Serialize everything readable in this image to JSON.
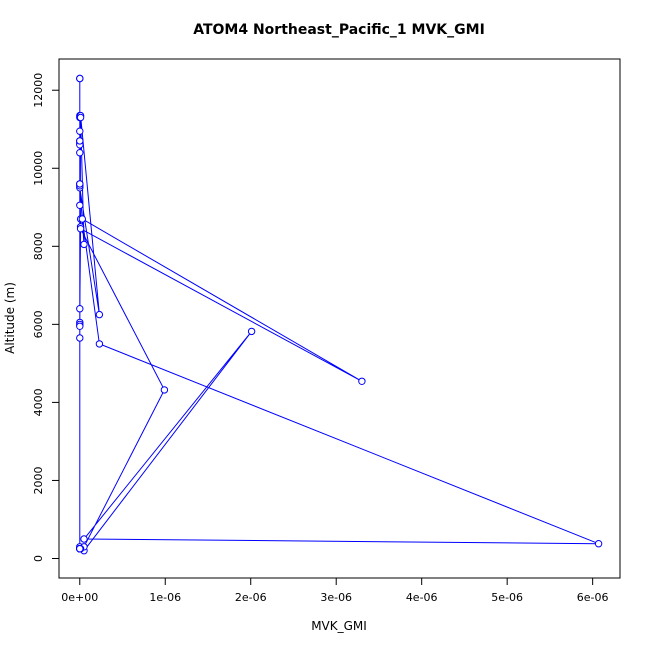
{
  "chart_data": {
    "type": "line",
    "title": "ATOM4 Northeast_Pacific_1 MVK_GMI",
    "xlabel": "MVK_GMI",
    "ylabel": "Altitude (m)",
    "xlim": [
      -2.43e-07,
      6.32e-06
    ],
    "ylim": [
      -500,
      12800
    ],
    "x_ticks": [
      0,
      1e-06,
      2e-06,
      3e-06,
      4e-06,
      5e-06,
      6e-06
    ],
    "x_tick_labels": [
      "0e+00",
      "1e-06",
      "2e-06",
      "3e-06",
      "4e-06",
      "5e-06",
      "6e-06"
    ],
    "y_ticks": [
      0,
      2000,
      4000,
      6000,
      8000,
      10000,
      12000
    ],
    "y_tick_labels": [
      "0",
      "2000",
      "4000",
      "6000",
      "8000",
      "10000",
      "12000"
    ],
    "grid": false,
    "marker": "open-circle",
    "color": "#0000ff",
    "series": [
      {
        "x": [
          0,
          0,
          0,
          0,
          0,
          0,
          0,
          0,
          0,
          0,
          0,
          2.3e-07,
          1e-08,
          5e-08,
          0,
          1e-08,
          0,
          1e-08,
          0,
          0,
          0,
          0,
          1e-08,
          0,
          0,
          0,
          0,
          0,
          0,
          0,
          0,
          0,
          0,
          0,
          5e-08,
          2.01e-06,
          5e-08,
          6.07e-06,
          2.3e-07,
          3e-08,
          3.3e-06,
          1e-08,
          9.9e-07,
          5e-08,
          1e-08,
          0,
          0
        ],
        "y": [
          12300,
          12300,
          11350,
          11300,
          10950,
          10700,
          10650,
          10600,
          10400,
          9600,
          9500,
          6250,
          11350,
          8050,
          9550,
          8700,
          9050,
          8500,
          6400,
          6050,
          6000,
          5650,
          11300,
          10700,
          9600,
          5950,
          300,
          250,
          250,
          250,
          250,
          250,
          250,
          250,
          200,
          5820,
          500,
          380,
          5500,
          8700,
          4540,
          8450,
          4320,
          300,
          250,
          250,
          250
        ]
      }
    ]
  }
}
